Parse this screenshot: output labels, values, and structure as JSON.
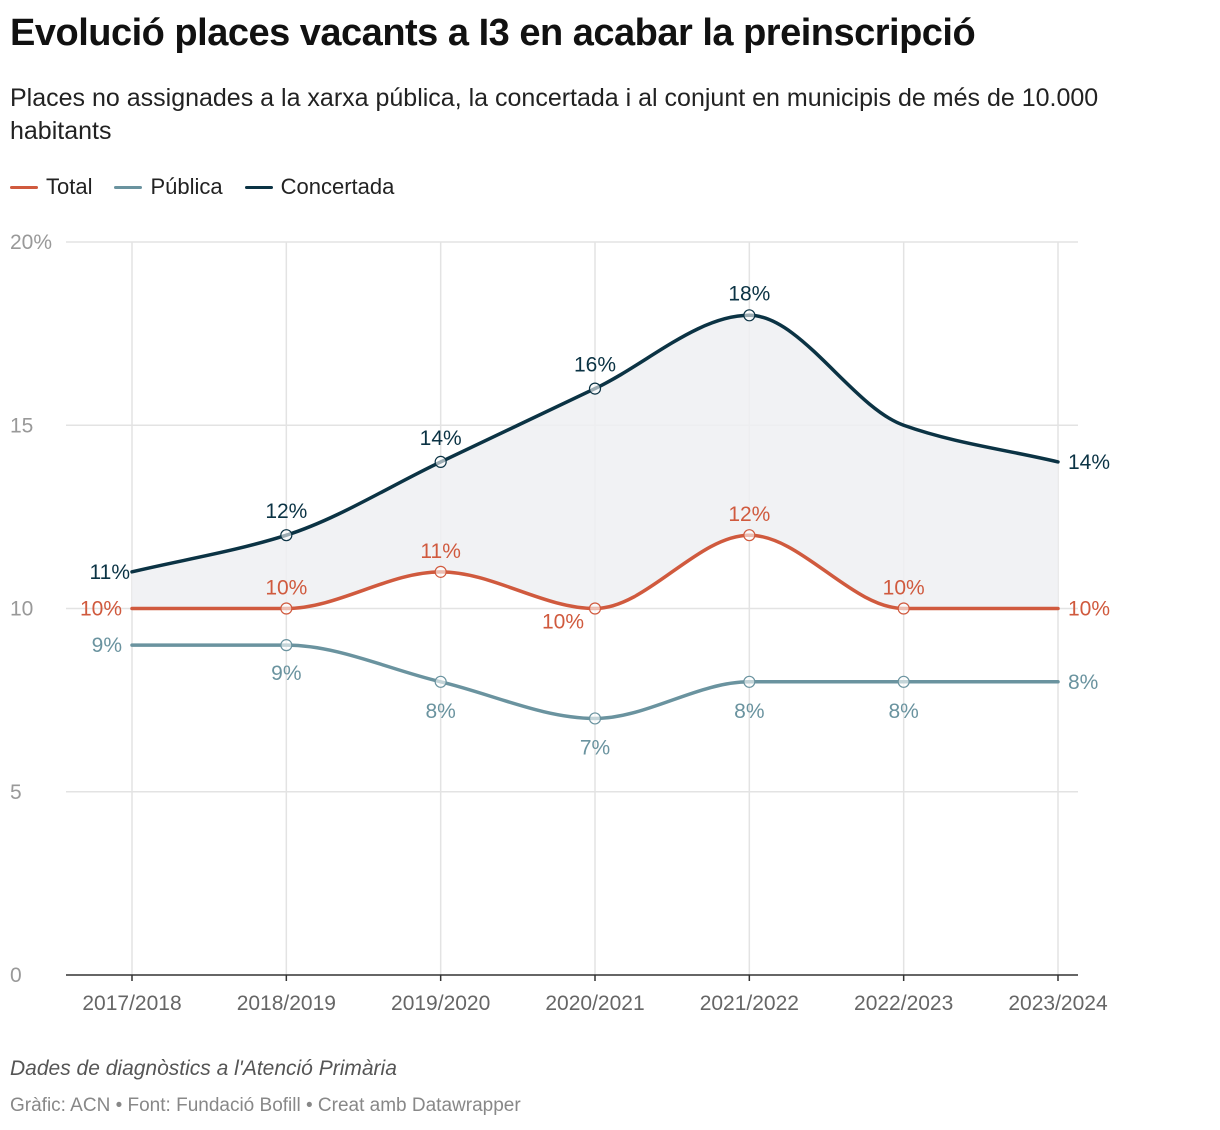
{
  "header": {
    "title": "Evolució places vacants a I3 en acabar la preinscripció",
    "subtitle": "Places no assignades a la xarxa pública, la concertada i al conjunt en municipis de més de 10.000 habitants"
  },
  "legend": [
    {
      "label": "Total",
      "color": "#d05a3e"
    },
    {
      "label": "Pública",
      "color": "#6a939f"
    },
    {
      "label": "Concertada",
      "color": "#0b3344"
    }
  ],
  "chart_data": {
    "type": "line",
    "categories": [
      "2017/2018",
      "2018/2019",
      "2019/2020",
      "2020/2021",
      "2021/2022",
      "2022/2023",
      "2023/2024"
    ],
    "ylim": [
      0,
      20
    ],
    "yticks": [
      0,
      5,
      10,
      15,
      20
    ],
    "ytick_labels": [
      "0",
      "5",
      "10",
      "15",
      "20%"
    ],
    "grid": true,
    "legend_position": "top-left",
    "shaded_area_between": [
      "Total",
      "Concertada"
    ],
    "series": [
      {
        "name": "Total",
        "color": "#d05a3e",
        "values": [
          10,
          10,
          11,
          10,
          12,
          10,
          10
        ],
        "labels": [
          "10%",
          "10%",
          "11%",
          "10%",
          "12%",
          "10%",
          "10%"
        ]
      },
      {
        "name": "Pública",
        "color": "#6a939f",
        "values": [
          9,
          9,
          8,
          7,
          8,
          8,
          8
        ],
        "labels": [
          "9%",
          "9%",
          "8%",
          "7%",
          "8%",
          "8%",
          "8%"
        ]
      },
      {
        "name": "Concertada",
        "color": "#0b3344",
        "values": [
          11,
          12,
          14,
          16,
          18,
          15,
          14
        ],
        "labels": [
          "11%",
          "12%",
          "14%",
          "16%",
          "18%",
          "",
          "14%"
        ]
      }
    ]
  },
  "notes": "Dades de diagnòstics a l'Atenció Primària",
  "footer": "Gràfic: ACN • Font: Fundació Bofill • Creat amb Datawrapper"
}
